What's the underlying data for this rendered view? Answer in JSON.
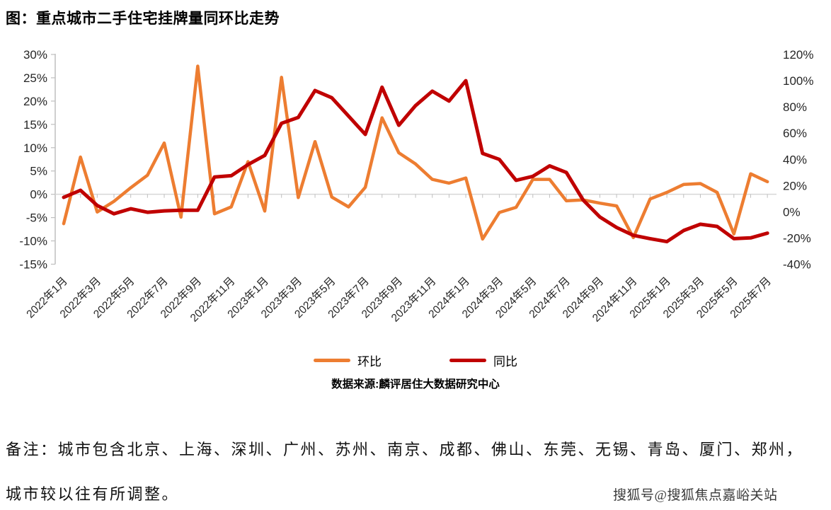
{
  "title": "图：重点城市二手住宅挂牌量同环比走势",
  "legend": [
    {
      "label": "环比",
      "color": "#ED7D31"
    },
    {
      "label": "同比",
      "color": "#C00000"
    }
  ],
  "source": "数据来源:麟评居住大数据研究中心",
  "notes": [
    "备注：城市包含北京、上海、深圳、广州、苏州、南京、成都、佛山、东莞、无锡、青岛、厦门、郑州，",
    "城市较以往有所调整。"
  ],
  "watermark": "搜狐号@搜狐焦点嘉峪关站",
  "chart_data": {
    "type": "line",
    "title": "图：重点城市二手住宅挂牌量同环比走势",
    "x": [
      "2022年1月",
      "2022年2月",
      "2022年3月",
      "2022年4月",
      "2022年5月",
      "2022年6月",
      "2022年7月",
      "2022年8月",
      "2022年9月",
      "2022年10月",
      "2022年11月",
      "2022年12月",
      "2023年1月",
      "2023年2月",
      "2023年3月",
      "2023年4月",
      "2023年5月",
      "2023年6月",
      "2023年7月",
      "2023年8月",
      "2023年9月",
      "2023年10月",
      "2023年11月",
      "2023年12月",
      "2024年1月",
      "2024年2月",
      "2024年3月",
      "2024年4月",
      "2024年5月",
      "2024年6月",
      "2024年7月",
      "2024年8月",
      "2024年9月",
      "2024年10月",
      "2024年11月",
      "2024年12月",
      "2025年1月",
      "2025年2月",
      "2025年3月",
      "2025年4月",
      "2025年5月",
      "2025年6月",
      "2025年7月"
    ],
    "x_tick_labels": [
      "2022年1月",
      "2022年3月",
      "2022年5月",
      "2022年7月",
      "2022年9月",
      "2022年11月",
      "2023年1月",
      "2023年3月",
      "2023年5月",
      "2023年7月",
      "2023年9月",
      "2023年11月",
      "2024年1月",
      "2024年3月",
      "2024年5月",
      "2024年7月",
      "2024年9月",
      "2024年11月",
      "2025年1月",
      "2025年3月",
      "2025年5月",
      "2025年7月"
    ],
    "series": [
      {
        "key": "mom",
        "name": "环比",
        "axis": "left",
        "color": "#ED7D31",
        "values": [
          -6.3,
          8.0,
          -3.8,
          -1.5,
          1.4,
          4.1,
          11.0,
          -4.9,
          27.5,
          -4.2,
          -2.7,
          7.0,
          -3.6,
          25.1,
          -0.7,
          11.3,
          -0.6,
          -2.7,
          1.5,
          16.4,
          8.9,
          6.5,
          3.2,
          2.4,
          3.5,
          -9.6,
          -3.9,
          -2.8,
          3.2,
          3.2,
          -1.4,
          -1.2,
          -1.9,
          -2.5,
          -9.3,
          -1.0,
          0.4,
          2.1,
          2.3,
          0.4,
          -8.5,
          4.4,
          2.7
        ]
      },
      {
        "key": "yoy",
        "name": "同比",
        "axis": "right",
        "color": "#C00000",
        "values": [
          11,
          16.4,
          4.8,
          -1.5,
          2.3,
          -0.4,
          0.7,
          1.2,
          1.1,
          26.5,
          27.5,
          36,
          43,
          67.5,
          72,
          92.5,
          87,
          73,
          59,
          95,
          66,
          81,
          92,
          84.5,
          100,
          44.5,
          40,
          24,
          27,
          35,
          30,
          9,
          -4,
          -12,
          -18,
          -20.5,
          -22.8,
          -14.3,
          -9.5,
          -11.2,
          -20.5,
          -19.9,
          -16.3
        ]
      }
    ],
    "left_axis": {
      "min": -15,
      "max": 30,
      "unit": "%",
      "tick_labels": [
        "30%",
        "25%",
        "20%",
        "15%",
        "10%",
        "5%",
        "0%",
        "-5%",
        "-10%",
        "-15%"
      ]
    },
    "right_axis": {
      "min": -40,
      "max": 120,
      "unit": "%",
      "tick_labels": [
        "120%",
        "100%",
        "80%",
        "60%",
        "40%",
        "20%",
        "0%",
        "-20%",
        "-40%"
      ]
    },
    "grid": "zero-line-only",
    "legend_position": "bottom"
  }
}
